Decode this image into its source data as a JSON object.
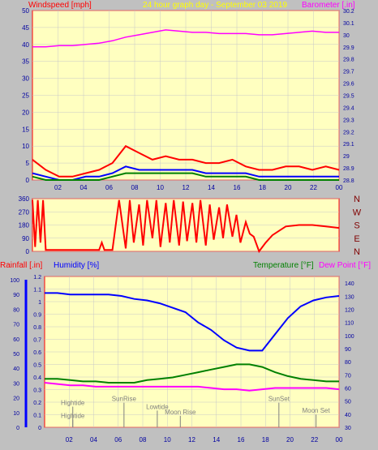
{
  "colors": {
    "bg": "#c0c0c0",
    "plot": "#ffffc0",
    "grid": "#c8c8c8",
    "axis_red": "#ff0000",
    "title_yellow": "#ffff00",
    "magenta": "#ff00ff",
    "blue": "#0000ff",
    "green": "#008000",
    "navy": "#0000a0",
    "gray_text": "#808080",
    "dark_red": "#800000"
  },
  "x_ticks": [
    "02",
    "04",
    "06",
    "08",
    "10",
    "12",
    "14",
    "16",
    "18",
    "20",
    "22",
    "00"
  ],
  "chart_data": [
    {
      "type": "line",
      "title": "24 hour graph day - September 03 2019",
      "ylabel": "Windspeed [mph]",
      "y2label": "Barometer [.in]",
      "x_range": [
        0,
        23
      ],
      "ylim": [
        0,
        50
      ],
      "y_ticks": [
        0,
        5,
        10,
        15,
        20,
        25,
        30,
        35,
        40,
        45,
        50
      ],
      "y2lim": [
        28.8,
        30.2
      ],
      "y2_ticks": [
        "28.8",
        "28.9",
        "29",
        "29.1",
        "29.2",
        "29.3",
        "29.4",
        "29.5",
        "29.6",
        "29.7",
        "29.8",
        "29.9",
        "30",
        "30.1",
        "30.2"
      ],
      "series": [
        {
          "name": "Barometer",
          "axis": "y2",
          "color": "#ff00ff",
          "x": [
            0,
            1,
            2,
            3,
            4,
            5,
            6,
            7,
            8,
            9,
            10,
            11,
            12,
            13,
            14,
            15,
            16,
            17,
            18,
            19,
            20,
            21,
            22,
            23
          ],
          "values": [
            29.9,
            29.9,
            29.91,
            29.91,
            29.92,
            29.93,
            29.95,
            29.98,
            30.0,
            30.02,
            30.04,
            30.03,
            30.02,
            30.02,
            30.01,
            30.01,
            30.01,
            30.0,
            30.0,
            30.01,
            30.02,
            30.03,
            30.02,
            30.02
          ]
        },
        {
          "name": "Gust",
          "axis": "y",
          "color": "#ff0000",
          "x": [
            0,
            1,
            2,
            3,
            4,
            5,
            6,
            7,
            8,
            9,
            10,
            11,
            12,
            13,
            14,
            15,
            16,
            17,
            18,
            19,
            20,
            21,
            22,
            23
          ],
          "values": [
            6,
            3,
            1,
            1,
            2,
            3,
            5,
            10,
            8,
            6,
            7,
            6,
            6,
            5,
            5,
            6,
            4,
            3,
            3,
            4,
            4,
            3,
            4,
            3
          ]
        },
        {
          "name": "Wind",
          "axis": "y",
          "color": "#0000ff",
          "x": [
            0,
            1,
            2,
            3,
            4,
            5,
            6,
            7,
            8,
            9,
            10,
            11,
            12,
            13,
            14,
            15,
            16,
            17,
            18,
            19,
            20,
            21,
            22,
            23
          ],
          "values": [
            2,
            1,
            0,
            0,
            1,
            1,
            2,
            4,
            3,
            3,
            3,
            3,
            3,
            2,
            2,
            2,
            2,
            1,
            1,
            1,
            1,
            1,
            1,
            1
          ]
        },
        {
          "name": "Avg",
          "axis": "y",
          "color": "#008000",
          "x": [
            0,
            1,
            2,
            3,
            4,
            5,
            6,
            7,
            8,
            9,
            10,
            11,
            12,
            13,
            14,
            15,
            16,
            17,
            18,
            19,
            20,
            21,
            22,
            23
          ],
          "values": [
            1,
            0,
            0,
            0,
            0,
            0,
            1,
            2,
            2,
            2,
            2,
            2,
            2,
            1,
            1,
            1,
            1,
            0,
            0,
            0,
            0,
            0,
            0,
            0
          ]
        }
      ]
    },
    {
      "type": "line",
      "ylabel": "",
      "x_range": [
        0,
        23
      ],
      "ylim": [
        0,
        360
      ],
      "y_ticks": [
        0,
        90,
        180,
        270,
        360
      ],
      "compass": [
        "N",
        "W",
        "S",
        "E",
        "N"
      ],
      "series": [
        {
          "name": "Wind Direction",
          "color": "#ff0000",
          "x": [
            0,
            0.2,
            0.4,
            0.6,
            0.8,
            1,
            2,
            3,
            4,
            5,
            5.2,
            5.4,
            6,
            6.5,
            7,
            7.3,
            7.6,
            8,
            8.3,
            8.6,
            9,
            9.3,
            9.6,
            10,
            10.3,
            10.6,
            11,
            11.3,
            11.6,
            12,
            12.3,
            12.6,
            13,
            13.3,
            13.6,
            14,
            14.3,
            14.6,
            15,
            15.3,
            15.6,
            16,
            16.3,
            16.6,
            17,
            17.5,
            18,
            18.5,
            19,
            20,
            21,
            22,
            23
          ],
          "values": [
            350,
            30,
            350,
            60,
            350,
            10,
            10,
            10,
            10,
            10,
            60,
            10,
            10,
            350,
            20,
            350,
            60,
            320,
            40,
            350,
            90,
            350,
            30,
            330,
            60,
            350,
            40,
            340,
            70,
            330,
            60,
            350,
            40,
            320,
            80,
            300,
            90,
            320,
            100,
            250,
            60,
            200,
            120,
            100,
            0,
            60,
            110,
            140,
            170,
            180,
            180,
            170,
            160
          ]
        }
      ]
    },
    {
      "type": "line",
      "ylabel": "Rainfall [.in]",
      "y2label": "Humidity [%]",
      "y3label": "Temperature [°F]",
      "y4label": "Dew Point [°F]",
      "x_range": [
        0,
        23
      ],
      "rain_ticks": [
        "0",
        "0.1",
        "0.2",
        "0.3",
        "0.4",
        "0.5",
        "0.6",
        "0.7",
        "0.8",
        "0.9",
        "1",
        "1.1",
        "1.2"
      ],
      "humidity_ticks": [
        0,
        10,
        20,
        30,
        40,
        50,
        60,
        70,
        80,
        90,
        100
      ],
      "temp_ticks": [
        30,
        40,
        50,
        60,
        70,
        80,
        90,
        100,
        110,
        120,
        130,
        140
      ],
      "temp_lim": [
        30,
        145
      ],
      "series": [
        {
          "name": "Humidity",
          "axis": "humidity",
          "color": "#0000ff",
          "x": [
            0,
            1,
            2,
            3,
            4,
            5,
            6,
            7,
            8,
            9,
            10,
            11,
            12,
            13,
            14,
            15,
            16,
            17,
            18,
            19,
            20,
            21,
            22,
            23
          ],
          "values": [
            91,
            91,
            90,
            90,
            90,
            90,
            89,
            87,
            86,
            84,
            81,
            78,
            71,
            66,
            59,
            54,
            52,
            52,
            63,
            74,
            82,
            86,
            88,
            89
          ]
        },
        {
          "name": "Temperature",
          "axis": "temp",
          "color": "#008000",
          "x": [
            0,
            1,
            2,
            3,
            4,
            5,
            6,
            7,
            8,
            9,
            10,
            11,
            12,
            13,
            14,
            15,
            16,
            17,
            18,
            19,
            20,
            21,
            22,
            23
          ],
          "values": [
            67,
            67,
            66,
            65,
            65,
            64,
            64,
            64,
            66,
            67,
            68,
            70,
            72,
            74,
            76,
            78,
            78,
            76,
            72,
            69,
            67,
            66,
            65,
            65
          ]
        },
        {
          "name": "Dew Point",
          "axis": "temp",
          "color": "#ff00ff",
          "x": [
            0,
            1,
            2,
            3,
            4,
            5,
            6,
            7,
            8,
            9,
            10,
            11,
            12,
            13,
            14,
            15,
            16,
            17,
            18,
            19,
            20,
            21,
            22,
            23
          ],
          "values": [
            64,
            63,
            62,
            62,
            61,
            61,
            61,
            61,
            61,
            61,
            61,
            61,
            61,
            60,
            59,
            59,
            58,
            59,
            60,
            60,
            60,
            60,
            60,
            59
          ]
        }
      ],
      "annotations": [
        {
          "label": "Hightide",
          "x": 2.2,
          "y": 47
        },
        {
          "label": "SunRise",
          "x": 6.2,
          "y": 50
        },
        {
          "label": "Lowtide",
          "x": 8.8,
          "y": 44
        },
        {
          "label": "Moon Rise",
          "x": 10.6,
          "y": 40
        },
        {
          "label": "SunSet",
          "x": 18.3,
          "y": 50
        },
        {
          "label": "Moon Set",
          "x": 21.2,
          "y": 41
        },
        {
          "label": "Hightide",
          "x": 2.2,
          "y": 37
        }
      ]
    }
  ]
}
